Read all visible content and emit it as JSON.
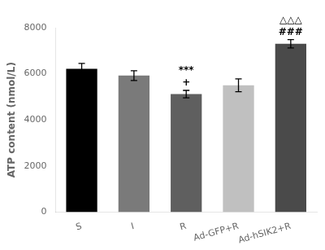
{
  "chart_data": {
    "type": "bar",
    "categories": [
      "S",
      "I",
      "R",
      "Ad-GFP+R",
      "Ad-hSIK2+R"
    ],
    "values": [
      6220,
      5920,
      5120,
      5500,
      7300
    ],
    "errors": [
      230,
      210,
      160,
      280,
      180
    ],
    "colors": [
      "#000000",
      "#7a7a7a",
      "#5f5f5f",
      "#c0c0c0",
      "#4a4a4a"
    ],
    "ylabel": "ATP content (nmol/L)",
    "ylim": [
      0,
      8000
    ],
    "yticks": [
      0,
      2000,
      4000,
      6000,
      8000
    ],
    "grid": false,
    "annotations": [
      {
        "category": "R",
        "texts": [
          "+",
          "***"
        ]
      },
      {
        "category": "Ad-hSIK2+R",
        "texts": [
          "###",
          "△△△"
        ]
      }
    ]
  }
}
